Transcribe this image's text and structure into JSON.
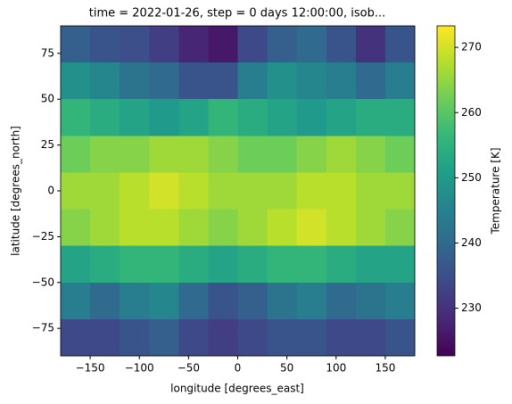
{
  "chart_data": {
    "type": "heatmap",
    "title": "time = 2022-01-26, step = 0 days 12:00:00, isob...",
    "x_label": "longitude [degrees_east]",
    "y_label": "latitude [degrees_north]",
    "colorbar_label": "Temperature [K]",
    "colormap": "viridis",
    "xbins": [
      -180,
      -150,
      -120,
      -90,
      -60,
      -30,
      0,
      30,
      60,
      90,
      120,
      150,
      180
    ],
    "ybins": [
      90,
      70,
      50,
      30,
      10,
      -10,
      -30,
      -50,
      -70,
      -90
    ],
    "values": [
      [
        238,
        236,
        235,
        232,
        228,
        226,
        234,
        238,
        240,
        236,
        230,
        236
      ],
      [
        248,
        246,
        242,
        240,
        236,
        236,
        244,
        248,
        246,
        244,
        240,
        244
      ],
      [
        256,
        254,
        252,
        250,
        252,
        256,
        254,
        252,
        250,
        252,
        254,
        254
      ],
      [
        262,
        264,
        264,
        266,
        266,
        264,
        262,
        262,
        264,
        266,
        264,
        262
      ],
      [
        266,
        266,
        268,
        270,
        268,
        266,
        266,
        266,
        268,
        268,
        266,
        266
      ],
      [
        264,
        266,
        268,
        268,
        266,
        264,
        266,
        268,
        270,
        268,
        266,
        264
      ],
      [
        252,
        254,
        256,
        256,
        254,
        252,
        254,
        256,
        256,
        254,
        252,
        252
      ],
      [
        244,
        240,
        244,
        246,
        240,
        236,
        238,
        242,
        244,
        240,
        242,
        244
      ],
      [
        234,
        234,
        236,
        238,
        234,
        232,
        234,
        236,
        236,
        234,
        234,
        236
      ]
    ],
    "xlim": [
      -180,
      180
    ],
    "ylim": [
      -90,
      90
    ],
    "clim": [
      222.7,
      273.3
    ],
    "xticks": [
      {
        "value": -150,
        "label": "−150"
      },
      {
        "value": -100,
        "label": "−100"
      },
      {
        "value": -50,
        "label": "−50"
      },
      0,
      50,
      100,
      150
    ],
    "yticks": [
      {
        "value": -75,
        "label": "−75"
      },
      {
        "value": -50,
        "label": "−50"
      },
      {
        "value": -25,
        "label": "−25"
      },
      0,
      25,
      50,
      75
    ],
    "cticks": [
      230,
      240,
      250,
      260,
      270
    ]
  }
}
